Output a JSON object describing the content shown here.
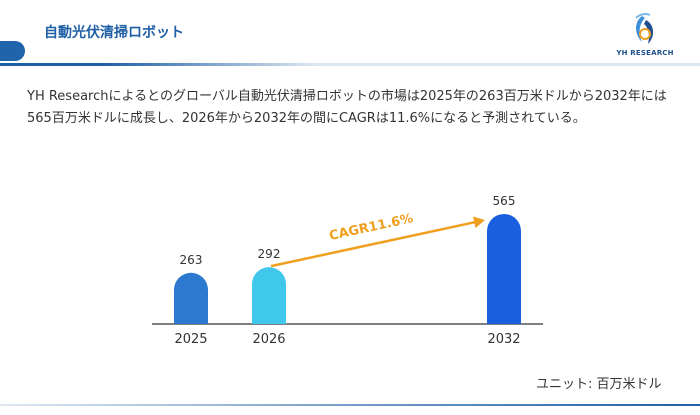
{
  "header": {
    "title": "自動光伏清掃ロボット",
    "logo_text": "YH RESEARCH"
  },
  "description": "YH Researchによるとのグローバル自動光伏清掃ロボットの市場は2025年の263百万米ドルから2032年には565百万米ドルに成長し、2026年から2032年の間にCAGRは11.6%になると予測されている。",
  "unit_label": "ユニット: 百万米ドル",
  "colors": {
    "bar_2025": "#2e79d0",
    "bar_2026": "#3fc8ec",
    "bar_2032": "#1a5fe0",
    "arrow": "#f0a020",
    "title": "#1f5fa6"
  },
  "chart_data": {
    "type": "bar",
    "categories": [
      "2025",
      "2026",
      "2032"
    ],
    "values": [
      263,
      292,
      565
    ],
    "annotation": "CAGR11.6%",
    "ylim": [
      0,
      600
    ],
    "grid": false,
    "legend": "none"
  }
}
